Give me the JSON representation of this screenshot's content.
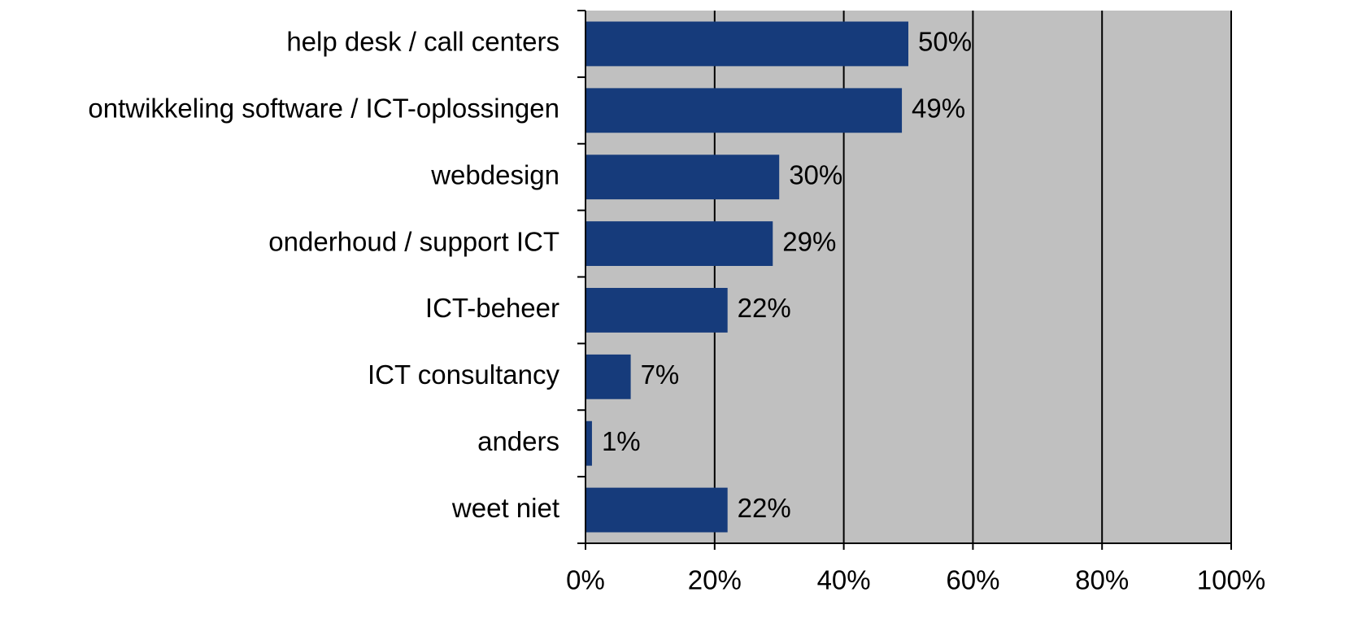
{
  "chart_data": {
    "type": "bar",
    "orientation": "horizontal",
    "categories": [
      "help desk / call centers",
      "ontwikkeling software / ICT-oplossingen",
      "webdesign",
      "onderhoud / support ICT",
      "ICT-beheer",
      "ICT consultancy",
      "anders",
      "weet niet"
    ],
    "values": [
      50,
      49,
      30,
      29,
      22,
      7,
      1,
      22
    ],
    "value_labels": [
      "50%",
      "49%",
      "30%",
      "29%",
      "22%",
      "7%",
      "1%",
      "22%"
    ],
    "color": "#163b7b",
    "xlim": [
      0,
      100
    ],
    "xticks": [
      {
        "value": 0,
        "label": "0%"
      },
      {
        "value": 20,
        "label": "20%"
      },
      {
        "value": 40,
        "label": "40%"
      },
      {
        "value": 60,
        "label": "60%"
      },
      {
        "value": 80,
        "label": "80%"
      },
      {
        "value": 100,
        "label": "100%"
      }
    ],
    "grid": true
  }
}
